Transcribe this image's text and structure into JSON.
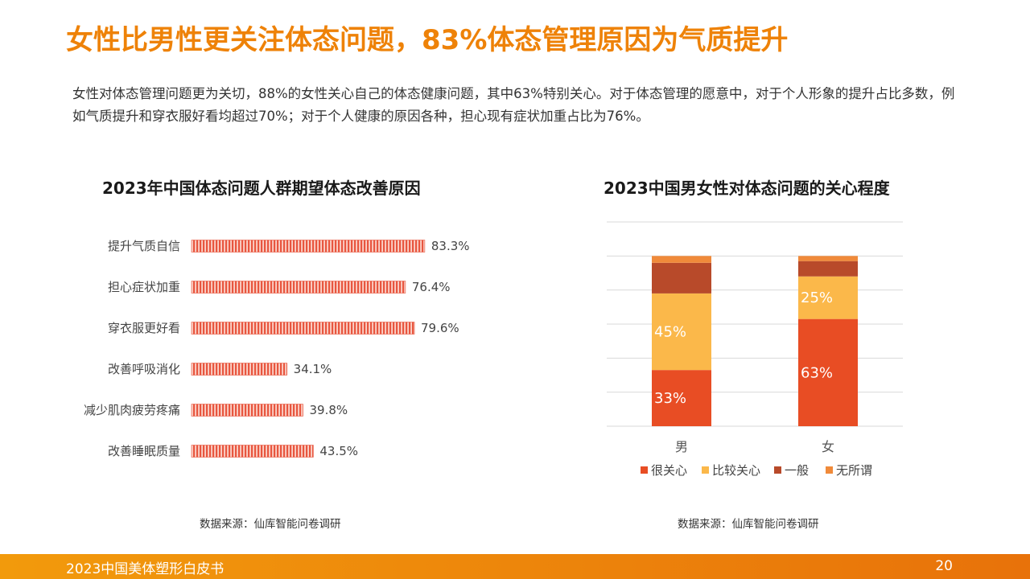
{
  "title": "女性比男性更关注体态问题，83%体态管理原因为气质提升",
  "description": "女性对体态管理问题更为关切，88%的女性关心自己的体态健康问题，其中63%特别关心。对于体态管理的愿意中，对于个人形象的提升占比多数，例如气质提升和穿衣服好看均超过70%；对于个人健康的原因各种，担心现有症状加重占比为76%。",
  "colors": {
    "accent": "#ee8208",
    "bar_stripe": "#e8563f",
    "very": "#e84d24",
    "somewhat": "#fbb84a",
    "normal": "#b84a2a",
    "indifferent": "#f08a3a"
  },
  "chart_data": [
    {
      "type": "bar",
      "orientation": "horizontal",
      "title": "2023年中国体态问题人群期望体态改善原因",
      "categories": [
        "提升气质自信",
        "担心症状加重",
        "穿衣服更好看",
        "改善呼吸消化",
        "减少肌肉疲劳疼痛",
        "改善睡眠质量"
      ],
      "values": [
        83.3,
        76.4,
        79.6,
        34.1,
        39.8,
        43.5
      ],
      "value_labels": [
        "83.3%",
        "76.4%",
        "79.6%",
        "34.1%",
        "39.8%",
        "43.5%"
      ],
      "grid": false
    },
    {
      "type": "bar",
      "stacked": true,
      "title": "2023中国男女性对体态问题的关心程度",
      "categories": [
        "男",
        "女"
      ],
      "series": [
        {
          "name": "很关心",
          "values": [
            33,
            63
          ],
          "labels": [
            "33%",
            "63%"
          ]
        },
        {
          "name": "比较关心",
          "values": [
            45,
            25
          ],
          "labels": [
            "45%",
            "25%"
          ]
        },
        {
          "name": "一般",
          "values": [
            18,
            9
          ],
          "labels": [
            "",
            ""
          ]
        },
        {
          "name": "无所谓",
          "values": [
            4,
            3
          ],
          "labels": [
            "",
            ""
          ]
        }
      ],
      "ylim": [
        0,
        120
      ],
      "grid": true,
      "legend_position": "bottom"
    }
  ],
  "sources": {
    "left": "数据来源：仙库智能问卷调研",
    "right": "数据来源：仙库智能问卷调研"
  },
  "footer": {
    "left": "2023中国美体塑形白皮书",
    "page": "20"
  }
}
